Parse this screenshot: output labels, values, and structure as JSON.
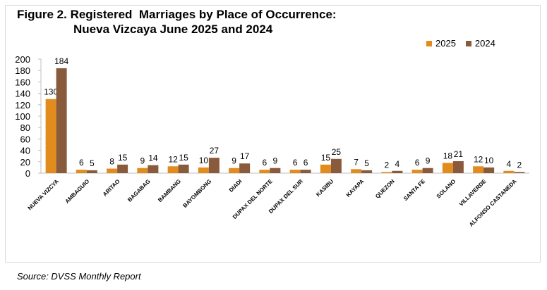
{
  "figure": {
    "title_line1": "Figure 2. Registered  Marriages by Place of Occurrence:",
    "title_line2": "Nueva Vizcaya June 2025 and 2024",
    "source": "Source: DVSS Monthly Report"
  },
  "colors": {
    "s2025": "#e28c1e",
    "s2024": "#8a5a3c",
    "axis": "#bfbfbf"
  },
  "chart_data": {
    "type": "bar",
    "categories": [
      "NUEVA VIZCYA",
      "AMBAGUIO",
      "ARITAO",
      "BAGABAG",
      "BAMBANG",
      "BAYOMBONG",
      "DIADI",
      "DUPAX DEL NORTE",
      "DUPAX DEL SUR",
      "KASIBU",
      "KAYAPA",
      "QUEZON",
      "SANTA FE",
      "SOLANO",
      "VILLAVERDE",
      "ALFONSO CASTANEDA"
    ],
    "series": [
      {
        "name": "2025",
        "values": [
          130,
          6,
          8,
          9,
          12,
          10,
          9,
          6,
          6,
          15,
          7,
          2,
          6,
          18,
          12,
          4
        ]
      },
      {
        "name": "2024",
        "values": [
          184,
          5,
          15,
          14,
          15,
          27,
          17,
          9,
          6,
          25,
          5,
          4,
          9,
          21,
          10,
          2
        ]
      }
    ],
    "ylim": [
      0,
      200
    ],
    "yticks": [
      0,
      20,
      40,
      60,
      80,
      100,
      120,
      140,
      160,
      180,
      200
    ],
    "grid": false,
    "legend": "top-right"
  }
}
